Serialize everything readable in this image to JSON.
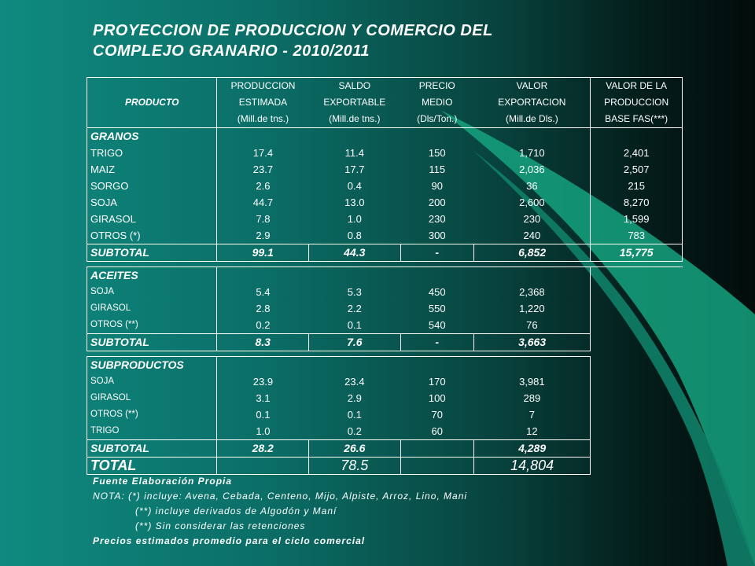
{
  "title": {
    "line1": "PROYECCION DE PRODUCCION Y COMERCIO DEL",
    "line2": "COMPLEJO GRANARIO - 2010/2011"
  },
  "header": {
    "producto": "PRODUCTO",
    "col2": [
      "PRODUCCION",
      "ESTIMADA",
      "(Mill.de tns.)"
    ],
    "col3": [
      "SALDO",
      "EXPORTABLE",
      "(Mill.de tns.)"
    ],
    "col4": [
      "PRECIO",
      "MEDIO",
      "(Dls/Ton.)"
    ],
    "col5": [
      "VALOR",
      "EXPORTACION",
      "(Mill.de Dls.)"
    ],
    "col6": [
      "VALOR DE LA",
      "PRODUCCION",
      "BASE FAS(***)"
    ]
  },
  "granos": {
    "label": "GRANOS",
    "rows": [
      {
        "name": "TRIGO",
        "prod": "17.4",
        "saldo": "11.4",
        "precio": "150",
        "valor": "1,710",
        "fas": "2,401"
      },
      {
        "name": "MAIZ",
        "prod": "23.7",
        "saldo": "17.7",
        "precio": "115",
        "valor": "2,036",
        "fas": "2,507"
      },
      {
        "name": "SORGO",
        "prod": "2.6",
        "saldo": "0.4",
        "precio": "90",
        "valor": "36",
        "fas": "215"
      },
      {
        "name": "SOJA",
        "prod": "44.7",
        "saldo": "13.0",
        "precio": "200",
        "valor": "2,600",
        "fas": "8,270"
      },
      {
        "name": "GIRASOL",
        "prod": "7.8",
        "saldo": "1.0",
        "precio": "230",
        "valor": "230",
        "fas": "1,599"
      },
      {
        "name": "OTROS (*)",
        "prod": "2.9",
        "saldo": "0.8",
        "precio": "300",
        "valor": "240",
        "fas": "783"
      }
    ],
    "subtotal": {
      "label": "SUBTOTAL",
      "prod": "99.1",
      "saldo": "44.3",
      "precio": "-",
      "valor": "6,852",
      "fas": "15,775"
    }
  },
  "aceites": {
    "label": "ACEITES",
    "rows": [
      {
        "name": "SOJA",
        "prod": "5.4",
        "saldo": "5.3",
        "precio": "450",
        "valor": "2,368"
      },
      {
        "name": "GIRASOL",
        "prod": "2.8",
        "saldo": "2.2",
        "precio": "550",
        "valor": "1,220"
      },
      {
        "name": "OTROS (**)",
        "prod": "0.2",
        "saldo": "0.1",
        "precio": "540",
        "valor": "76"
      }
    ],
    "subtotal": {
      "label": "SUBTOTAL",
      "prod": "8.3",
      "saldo": "7.6",
      "precio": "-",
      "valor": "3,663"
    }
  },
  "subproductos": {
    "label": "SUBPRODUCTOS",
    "rows": [
      {
        "name": "SOJA",
        "prod": "23.9",
        "saldo": "23.4",
        "precio": "170",
        "valor": "3,981"
      },
      {
        "name": "GIRASOL",
        "prod": "3.1",
        "saldo": "2.9",
        "precio": "100",
        "valor": "289"
      },
      {
        "name": "OTROS (**)",
        "prod": "0.1",
        "saldo": "0.1",
        "precio": "70",
        "valor": "7"
      },
      {
        "name": "TRIGO",
        "prod": "1.0",
        "saldo": "0.2",
        "precio": "60",
        "valor": "12"
      }
    ],
    "subtotal": {
      "label": "SUBTOTAL",
      "prod": "28.2",
      "saldo": "26.6",
      "precio": "",
      "valor": "4,289"
    }
  },
  "total": {
    "label": "TOTAL",
    "prod": "",
    "saldo": "78.5",
    "precio": "",
    "valor": "14,804"
  },
  "notes": {
    "fuente": "Fuente Elaboración Propia",
    "nota1": "NOTA: (*) incluye: Avena, Cebada, Centeno, Mijo, Alpiste, Arroz, Lino, Mani",
    "nota2": "(**) incluye derivados de Algodón y Maní",
    "nota3": "(**) Sin considerar las retenciones",
    "precios": "Precios estimados promedio para el ciclo comercial"
  },
  "colors": {
    "bg_left": "#0f8a80",
    "bg_right": "#020c0b",
    "swoosh": "#19a886"
  }
}
